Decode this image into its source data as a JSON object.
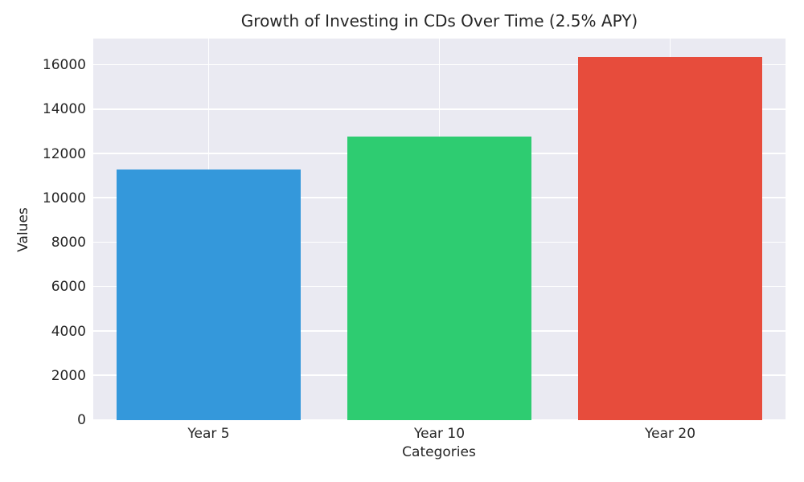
{
  "chart_data": {
    "type": "bar",
    "title": "Growth of Investing in CDs Over Time (2.5% APY)",
    "xlabel": "Categories",
    "ylabel": "Values",
    "categories": [
      "Year 5",
      "Year 10",
      "Year 20"
    ],
    "values": [
      11314.08,
      12800.85,
      16386.16
    ],
    "bar_colors": [
      "#3498db",
      "#2ecc71",
      "#e74c3c"
    ],
    "bar_width_fraction": 0.8,
    "ylim": [
      0,
      17205.5
    ],
    "yticks": [
      0,
      2000,
      4000,
      6000,
      8000,
      10000,
      12000,
      14000,
      16000
    ],
    "ytick_labels": [
      "0",
      "2000",
      "4000",
      "6000",
      "8000",
      "10000",
      "12000",
      "14000",
      "16000"
    ],
    "grid": true,
    "legend_position": "none",
    "plot_background_color": "#eaeaf2",
    "grid_color": "#ffffff",
    "figure_background_color": "#ffffff",
    "text_color": "#262626"
  }
}
